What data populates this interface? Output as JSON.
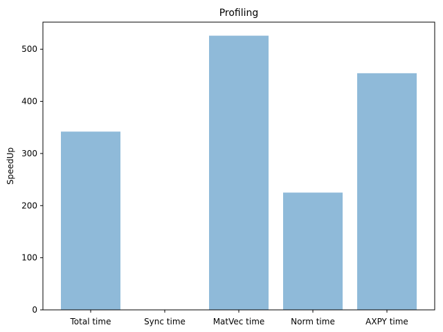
{
  "chart_data": {
    "type": "bar",
    "title": "Profiling",
    "xlabel": "",
    "ylabel": "SpeedUp",
    "categories": [
      "Total time",
      "Sync time",
      "MatVec time",
      "Norm time",
      "AXPY time"
    ],
    "values": [
      342,
      0,
      526,
      225,
      454
    ],
    "ylim": [
      0,
      552
    ],
    "yticks": [
      0,
      100,
      200,
      300,
      400,
      500
    ],
    "bar_color": "#8fbad9",
    "grid": false,
    "legend": "none"
  }
}
